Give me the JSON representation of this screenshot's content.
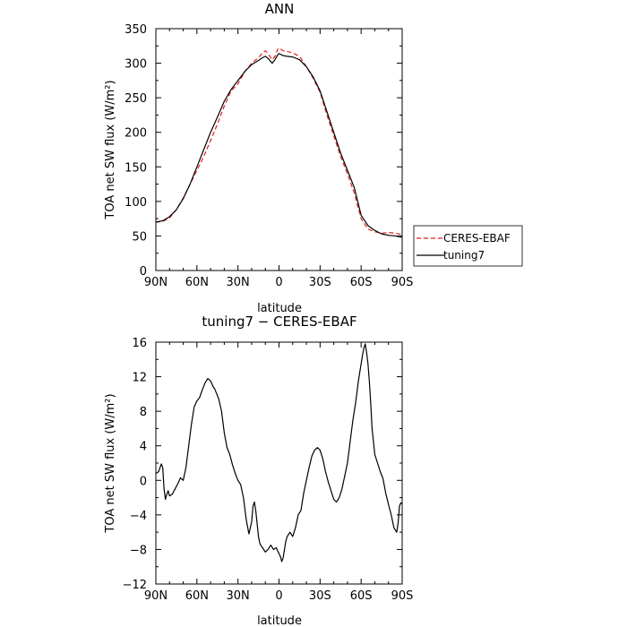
{
  "colors": {
    "ceres": "#e0211d",
    "tuning": "#000000",
    "axis": "#000000",
    "background": "#ffffff"
  },
  "chart_data": [
    {
      "type": "line",
      "title": "ANN",
      "xlabel": "latitude",
      "ylabel": "TOA net SW flux (W/m²)",
      "xlim": [
        90,
        -90
      ],
      "ylim": [
        0,
        350
      ],
      "xticks": [
        90,
        60,
        30,
        0,
        -30,
        -60,
        -90
      ],
      "xtick_labels": [
        "90N",
        "60N",
        "30N",
        "0",
        "30S",
        "60S",
        "90S"
      ],
      "yticks": [
        0,
        50,
        100,
        150,
        200,
        250,
        300,
        350
      ],
      "ytick_labels": [
        "0",
        "50",
        "100",
        "150",
        "200",
        "250",
        "300",
        "350"
      ],
      "legend": {
        "position": "lower-right-outside",
        "entries": [
          "CERES-EBAF",
          "tuning7"
        ]
      },
      "series": [
        {
          "name": "CERES-EBAF",
          "style": "dashed",
          "x": [
            90,
            85,
            80,
            75,
            70,
            65,
            60,
            55,
            50,
            45,
            40,
            35,
            30,
            25,
            20,
            15,
            12,
            10,
            8,
            5,
            3,
            1,
            0,
            -3,
            -6,
            -10,
            -15,
            -20,
            -25,
            -30,
            -35,
            -40,
            -45,
            -50,
            -55,
            -60,
            -65,
            -70,
            -75,
            -80,
            -85,
            -90
          ],
          "y": [
            70,
            71,
            76,
            88,
            105,
            125,
            145,
            165,
            188,
            212,
            238,
            260,
            270,
            288,
            300,
            308,
            315,
            318,
            314,
            305,
            310,
            320,
            322,
            318,
            317,
            315,
            310,
            295,
            278,
            258,
            225,
            195,
            165,
            140,
            112,
            75,
            60,
            56,
            54,
            55,
            54,
            52
          ]
        },
        {
          "name": "tuning7",
          "style": "solid",
          "x": [
            90,
            85,
            80,
            75,
            70,
            65,
            60,
            55,
            50,
            45,
            40,
            35,
            30,
            25,
            20,
            15,
            12,
            10,
            8,
            5,
            3,
            1,
            0,
            -3,
            -6,
            -10,
            -15,
            -20,
            -25,
            -30,
            -35,
            -40,
            -45,
            -50,
            -55,
            -60,
            -65,
            -70,
            -75,
            -80,
            -85,
            -90
          ],
          "y": [
            70,
            72,
            78,
            88,
            104,
            125,
            150,
            175,
            200,
            222,
            245,
            262,
            275,
            288,
            298,
            304,
            308,
            310,
            307,
            300,
            305,
            312,
            314,
            311,
            310,
            309,
            305,
            295,
            280,
            260,
            230,
            200,
            170,
            145,
            120,
            80,
            65,
            58,
            53,
            51,
            50,
            48
          ]
        }
      ]
    },
    {
      "type": "line",
      "title": "tuning7 − CERES-EBAF",
      "xlabel": "latitude",
      "ylabel": "TOA net SW flux (W/m²)",
      "xlim": [
        90,
        -90
      ],
      "ylim": [
        -12,
        16
      ],
      "xticks": [
        90,
        60,
        30,
        0,
        -30,
        -60,
        -90
      ],
      "xtick_labels": [
        "90N",
        "60N",
        "30N",
        "0",
        "30S",
        "60S",
        "90S"
      ],
      "yticks": [
        -12,
        -8,
        -4,
        0,
        4,
        8,
        12,
        16
      ],
      "ytick_labels": [
        "−12",
        "−8",
        "−4",
        "0",
        "4",
        "8",
        "12",
        "16"
      ],
      "series": [
        {
          "name": "tuning7 − CERES-EBAF",
          "style": "solid",
          "x": [
            90,
            88,
            86,
            85,
            84,
            83,
            82,
            81,
            80,
            78,
            76,
            74,
            72,
            70,
            68,
            66,
            64,
            62,
            60,
            58,
            56,
            54,
            52,
            50,
            48,
            47,
            46,
            44,
            42,
            40,
            38,
            36,
            34,
            32,
            30,
            28,
            26,
            24,
            22,
            20,
            19,
            18,
            17,
            16,
            15,
            14,
            13,
            12,
            10,
            8,
            6,
            4,
            2,
            0,
            -1,
            -2,
            -3,
            -4,
            -5,
            -6,
            -8,
            -10,
            -12,
            -14,
            -16,
            -18,
            -20,
            -22,
            -24,
            -26,
            -28,
            -30,
            -32,
            -34,
            -36,
            -38,
            -40,
            -42,
            -44,
            -46,
            -48,
            -50,
            -52,
            -54,
            -56,
            -58,
            -60,
            -61,
            -62,
            -63,
            -64,
            -65,
            -66,
            -67,
            -68,
            -70,
            -72,
            -74,
            -76,
            -78,
            -80,
            -82,
            -84,
            -86,
            -87,
            -88,
            -89,
            -90
          ],
          "y": [
            0.8,
            1.0,
            1.9,
            1.5,
            -1.0,
            -2.2,
            -1.6,
            -1.2,
            -1.8,
            -1.6,
            -1.0,
            -0.4,
            0.3,
            0.0,
            1.5,
            4.0,
            6.5,
            8.5,
            9.2,
            9.6,
            10.5,
            11.3,
            11.8,
            11.5,
            10.8,
            10.6,
            10.2,
            9.4,
            8.0,
            5.5,
            3.8,
            3.0,
            1.8,
            0.8,
            0.0,
            -0.5,
            -2.0,
            -4.5,
            -6.2,
            -4.8,
            -3.0,
            -2.5,
            -3.5,
            -5.0,
            -6.5,
            -7.3,
            -7.6,
            -7.8,
            -8.3,
            -8.0,
            -7.5,
            -8.0,
            -7.8,
            -8.5,
            -8.8,
            -9.4,
            -9.0,
            -8.0,
            -7.0,
            -6.5,
            -6.0,
            -6.5,
            -5.5,
            -4.0,
            -3.5,
            -1.5,
            0.0,
            1.5,
            2.8,
            3.5,
            3.8,
            3.5,
            2.5,
            1.0,
            -0.2,
            -1.2,
            -2.2,
            -2.5,
            -2.0,
            -1.0,
            0.5,
            2.0,
            4.5,
            7.0,
            9.0,
            11.5,
            13.5,
            14.5,
            15.3,
            15.8,
            14.8,
            13.5,
            11.5,
            9.0,
            6.0,
            3.0,
            2.0,
            1.0,
            0.2,
            -1.5,
            -2.8,
            -4.0,
            -5.5,
            -6.0,
            -5.0,
            -3.0,
            -2.6,
            -2.7
          ]
        }
      ]
    }
  ]
}
